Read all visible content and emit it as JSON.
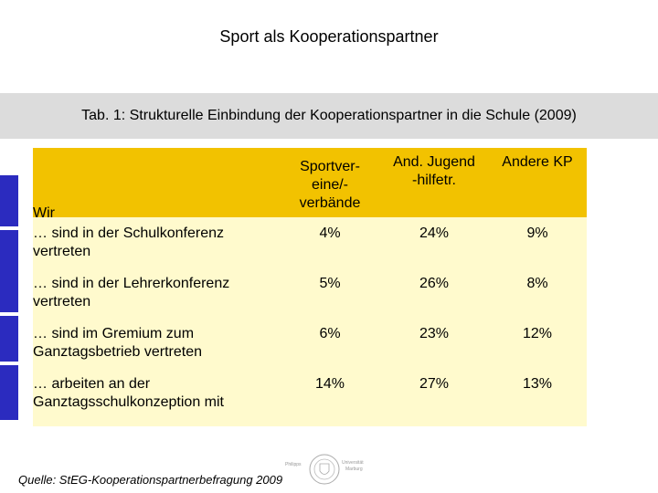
{
  "header": {
    "title": "Sport als Kooperationspartner",
    "subtitle": "Tab. 1: Strukturelle Einbindung der Kooperationspartner in die Schule (2009)"
  },
  "table": {
    "row_header": "Wir",
    "columns": [
      {
        "line1": "Sportver-",
        "line2": "eine/-",
        "line3": "verbände"
      },
      {
        "line1": "And. Jugend",
        "line2": "-hilfetr.",
        "line3": ""
      },
      {
        "line1": "Andere KP",
        "line2": "",
        "line3": ""
      }
    ],
    "rows": [
      {
        "label1": "… sind in der Schulkonferenz",
        "label2": "vertreten",
        "values": [
          "4%",
          "24%",
          "9%"
        ]
      },
      {
        "label1": "… sind in der Lehrerkonferenz",
        "label2": "vertreten",
        "values": [
          "5%",
          "26%",
          "8%"
        ]
      },
      {
        "label1": "… sind im Gremium zum",
        "label2": "Ganztagsbetrieb vertreten",
        "values": [
          "6%",
          "23%",
          "12%"
        ]
      },
      {
        "label1": "… arbeiten an der",
        "label2": "Ganztagsschulkonzeption mit",
        "values": [
          "14%",
          "27%",
          "13%"
        ]
      }
    ]
  },
  "footer": {
    "source": "Quelle: StEG-Kooperationspartnerbefragung 2009",
    "logo_left": "Philipps",
    "logo_right": "Universität",
    "logo_right2": "Marburg"
  },
  "colors": {
    "header_yellow": "#f2c200",
    "table_bg": "#fffacd",
    "band_gray": "#dcdcdc",
    "left_bar_blue": "#2b2bbf"
  }
}
